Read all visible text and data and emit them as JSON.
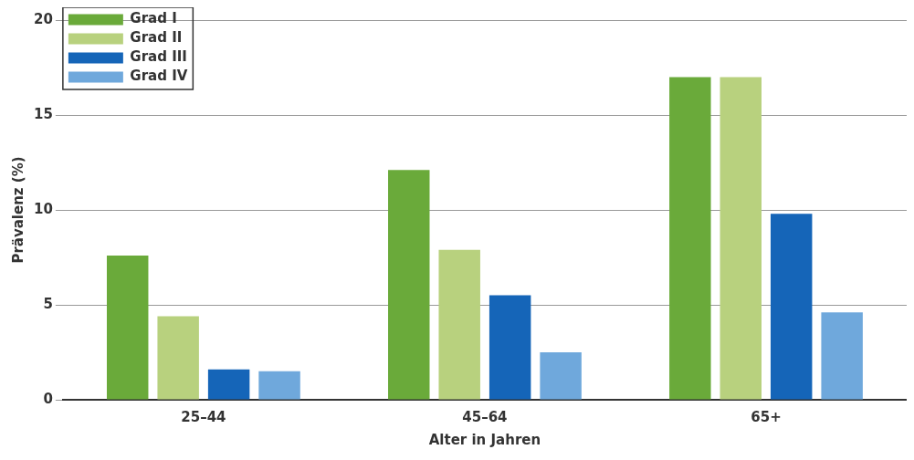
{
  "chart_data": {
    "type": "bar",
    "xlabel": "Alter in Jahren",
    "ylabel": "Prävalenz (%)",
    "categories": [
      "25–44",
      "45–64",
      "65+"
    ],
    "series": [
      {
        "name": "Grad I",
        "color": "#6aaa3a",
        "values": [
          7.6,
          12.1,
          17
        ]
      },
      {
        "name": "Grad II",
        "color": "#b8d17e",
        "values": [
          4.4,
          7.9,
          17
        ]
      },
      {
        "name": "Grad III",
        "color": "#1565b8",
        "values": [
          1.6,
          5.5,
          9.8
        ]
      },
      {
        "name": "Grad IV",
        "color": "#6fa8dc",
        "values": [
          1.5,
          2.5,
          4.6
        ]
      }
    ],
    "ylim": [
      0,
      20
    ],
    "yticks": [
      0,
      5,
      10,
      15,
      20
    ],
    "grid": "y",
    "legend": "top left"
  }
}
